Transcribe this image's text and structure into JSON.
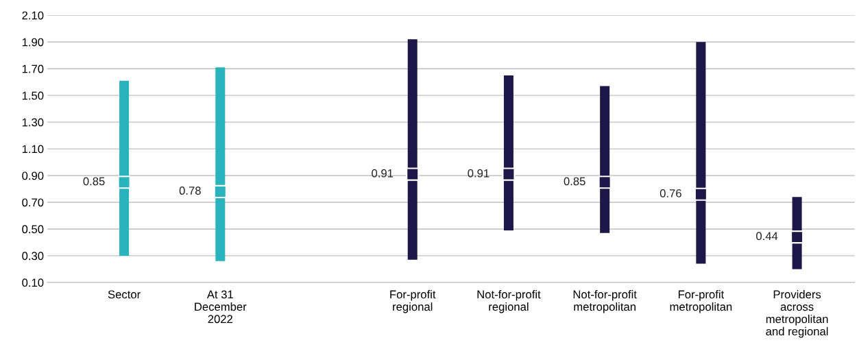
{
  "chart_data": {
    "type": "bar",
    "categories": [
      "Sector",
      "At 31\nDecember\n2022",
      null,
      "For-profit\nregional",
      "Not-for-profit\nregional",
      "Not-for-profit\nmetropolitan",
      "For-profit\nmetropolitan",
      "Providers\nacross\nmetropolitan\nand regional"
    ],
    "ylim": [
      0.1,
      2.1
    ],
    "yticks": [
      {
        "value": 0.1,
        "label": "0.10"
      },
      {
        "value": 0.3,
        "label": "0.30"
      },
      {
        "value": 0.5,
        "label": "0.50"
      },
      {
        "value": 0.7,
        "label": "0.70"
      },
      {
        "value": 0.9,
        "label": "0.90"
      },
      {
        "value": 1.1,
        "label": "1.10"
      },
      {
        "value": 1.3,
        "label": "1.30"
      },
      {
        "value": 1.5,
        "label": "1.50"
      },
      {
        "value": 1.7,
        "label": "1.70"
      },
      {
        "value": 1.9,
        "label": "1.90"
      },
      {
        "value": 2.1,
        "label": "2.10"
      }
    ],
    "grid": "y",
    "series": [
      {
        "colors": [
          "#2ab3bd",
          "#2ab3bd",
          null,
          "#1e1848",
          "#1e1848",
          "#1e1848",
          "#1e1848",
          "#1e1848"
        ],
        "base": [
          0.3,
          0.26,
          null,
          0.27,
          0.49,
          0.47,
          0.24,
          0.2
        ],
        "values": [
          1.31,
          1.45,
          null,
          1.65,
          1.16,
          1.1,
          1.66,
          0.54
        ]
      },
      {
        "type": "scatter",
        "marker": "square",
        "colors": [
          "#2ab3bd",
          "#2ab3bd",
          null,
          "#1e1848",
          "#1e1848",
          "#1e1848",
          "#1e1848",
          "#1e1848"
        ],
        "values": [
          0.85,
          0.78,
          null,
          0.91,
          0.91,
          0.85,
          0.76,
          0.44
        ],
        "value_labels": [
          "0.85",
          "0.78",
          null,
          "0.91",
          "0.91",
          "0.85",
          "0.76",
          "0.44"
        ]
      }
    ]
  }
}
